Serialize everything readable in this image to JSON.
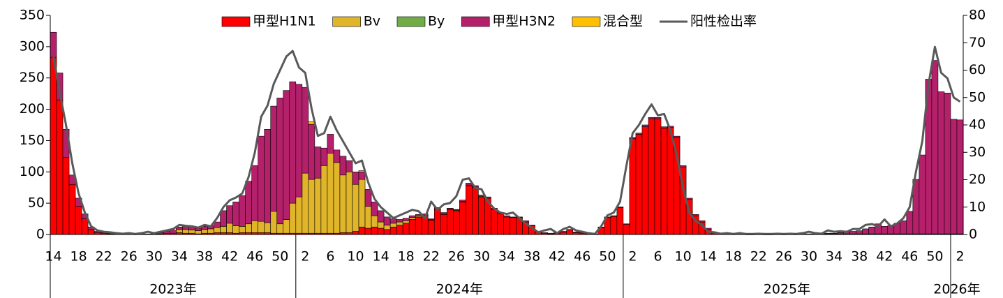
{
  "chart_data": {
    "type": "bar",
    "stacked": true,
    "legend": "top",
    "categories": [
      "14",
      null,
      null,
      null,
      "18",
      null,
      null,
      null,
      "22",
      null,
      null,
      null,
      "26",
      null,
      null,
      null,
      "30",
      null,
      null,
      null,
      "34",
      null,
      null,
      null,
      "38",
      null,
      null,
      null,
      "42",
      null,
      null,
      null,
      "46",
      null,
      null,
      null,
      "50",
      null,
      null,
      null,
      "2",
      null,
      null,
      null,
      "6",
      null,
      null,
      null,
      "10",
      null,
      null,
      null,
      "14",
      null,
      null,
      null,
      "18",
      null,
      null,
      null,
      "22",
      null,
      null,
      null,
      "26",
      null,
      null,
      null,
      "30",
      null,
      null,
      null,
      "34",
      null,
      null,
      null,
      "38",
      null,
      null,
      null,
      "42",
      null,
      null,
      null,
      "46",
      null,
      null,
      null,
      "50",
      null,
      null,
      null,
      "2",
      null,
      null,
      null,
      "6",
      null,
      null,
      null,
      "10",
      null,
      null,
      null,
      "14",
      null,
      null,
      null,
      "18",
      null,
      null,
      null,
      "22",
      null,
      null,
      null,
      "26",
      null,
      null,
      null,
      "30",
      null,
      null,
      null,
      "34",
      null,
      null,
      null,
      "38",
      null,
      null,
      null,
      "42",
      null,
      null,
      null,
      "46",
      null,
      null,
      null,
      "50",
      null,
      null,
      null,
      "2"
    ],
    "x_groups": [
      "2023年",
      "2024年",
      "2025年",
      "2026年"
    ],
    "ylim": [
      0,
      350
    ],
    "yticks": [
      0,
      50,
      100,
      150,
      200,
      250,
      300,
      350
    ],
    "y2lim": [
      0,
      80
    ],
    "y2ticks": [
      0,
      10,
      20,
      30,
      40,
      50,
      60,
      70,
      80
    ],
    "series": [
      {
        "name": "甲型H1N1",
        "color": "#ff0000",
        "values": [
          283,
          215,
          123,
          80,
          45,
          25,
          8,
          3,
          2,
          1,
          1,
          0,
          0,
          0,
          0,
          0,
          1,
          1,
          2,
          2,
          3,
          2,
          2,
          1,
          2,
          2,
          3,
          3,
          3,
          2,
          3,
          3,
          3,
          3,
          3,
          2,
          2,
          2,
          2,
          2,
          2,
          2,
          2,
          2,
          2,
          2,
          3,
          3,
          5,
          12,
          10,
          12,
          10,
          8,
          12,
          15,
          18,
          24,
          28,
          30,
          23,
          40,
          32,
          40,
          38,
          52,
          78,
          75,
          60,
          58,
          40,
          33,
          28,
          27,
          27,
          20,
          14,
          4,
          2,
          1,
          2,
          4,
          7,
          3,
          2,
          1,
          1,
          11,
          27,
          29,
          43,
          16,
          153,
          160,
          172,
          185,
          185,
          170,
          171,
          155,
          108,
          56,
          30,
          20,
          8,
          2,
          1,
          0,
          0,
          0,
          0,
          0,
          0,
          0,
          0,
          0,
          0,
          0,
          0,
          0,
          0,
          0,
          0,
          1,
          1,
          1,
          1,
          1,
          1,
          1,
          1,
          1,
          1,
          1,
          1,
          1,
          1,
          1,
          1,
          1,
          1,
          1,
          1,
          1,
          1
        ]
      },
      {
        "name": "Bv",
        "color": "#e0b52a",
        "values": [
          0,
          0,
          0,
          0,
          0,
          0,
          0,
          0,
          0,
          0,
          0,
          0,
          0,
          0,
          0,
          0,
          0,
          0,
          0,
          0,
          5,
          6,
          5,
          5,
          6,
          7,
          8,
          10,
          15,
          12,
          10,
          14,
          19,
          18,
          16,
          35,
          15,
          22,
          48,
          58,
          96,
          86,
          88,
          108,
          128,
          113,
          92,
          97,
          75,
          76,
          35,
          18,
          10,
          7,
          6,
          5,
          4,
          3,
          2,
          1,
          1,
          1,
          1,
          1,
          1,
          1,
          1,
          1,
          1,
          0,
          0,
          0,
          0,
          0,
          0,
          0,
          0,
          0,
          0,
          0,
          0,
          0,
          0,
          0,
          0,
          0,
          0,
          0,
          0,
          0,
          0,
          0,
          0,
          0,
          0,
          0,
          0,
          0,
          0,
          0,
          0,
          0,
          0,
          0,
          0,
          0,
          0,
          0,
          0,
          0,
          0,
          0,
          0,
          0,
          0,
          0,
          0,
          0,
          0,
          0,
          0,
          0,
          0,
          0,
          0,
          0,
          0,
          0,
          0,
          0,
          0,
          0,
          0,
          0,
          0,
          0,
          0,
          0,
          0,
          0,
          0,
          0,
          0,
          0,
          0
        ]
      },
      {
        "name": "By",
        "color": "#70ad47",
        "values": [
          0,
          0,
          0,
          0,
          0,
          0,
          0,
          0,
          0,
          0,
          0,
          0,
          0,
          0,
          0,
          0,
          0,
          0,
          0,
          0,
          0,
          0,
          0,
          0,
          0,
          0,
          0,
          0,
          0,
          0,
          0,
          0,
          0,
          0,
          0,
          0,
          0,
          0,
          0,
          0,
          0,
          0,
          0,
          0,
          0,
          0,
          0,
          0,
          0,
          0,
          0,
          0,
          0,
          0,
          0,
          0,
          0,
          0,
          0,
          0,
          0,
          0,
          0,
          0,
          0,
          0,
          0,
          0,
          0,
          0,
          0,
          0,
          0,
          0,
          0,
          0,
          0,
          0,
          0,
          0,
          0,
          0,
          0,
          0,
          0,
          0,
          0,
          0,
          0,
          0,
          0,
          0,
          0,
          0,
          0,
          0,
          0,
          0,
          0,
          0,
          0,
          0,
          0,
          0,
          0,
          0,
          0,
          0,
          0,
          0,
          0,
          0,
          0,
          0,
          0,
          0,
          0,
          0,
          0,
          0,
          0,
          0,
          0,
          0,
          0,
          0,
          0,
          0,
          0,
          0,
          0,
          0,
          0,
          0,
          0,
          0,
          0,
          0,
          0,
          0,
          0,
          0,
          0,
          0,
          0
        ]
      },
      {
        "name": "甲型H3N2",
        "color": "#b5206b",
        "values": [
          40,
          43,
          45,
          15,
          13,
          8,
          4,
          2,
          1,
          1,
          0,
          1,
          1,
          1,
          1,
          1,
          1,
          2,
          3,
          5,
          4,
          5,
          5,
          4,
          5,
          5,
          9,
          25,
          28,
          38,
          49,
          68,
          88,
          136,
          149,
          168,
          201,
          206,
          194,
          180,
          137,
          88,
          50,
          28,
          30,
          20,
          30,
          18,
          20,
          12,
          27,
          22,
          18,
          13,
          7,
          4,
          4,
          3,
          2,
          2,
          1,
          2,
          2,
          1,
          1,
          2,
          3,
          2,
          2,
          2,
          2,
          2,
          2,
          1,
          1,
          2,
          1,
          1,
          1,
          1,
          1,
          1,
          1,
          1,
          1,
          1,
          0,
          1,
          1,
          1,
          1,
          1,
          2,
          2,
          3,
          2,
          2,
          2,
          2,
          2,
          2,
          2,
          2,
          2,
          2,
          1,
          1,
          1,
          1,
          1,
          1,
          1,
          1,
          1,
          1,
          1,
          1,
          1,
          1,
          1,
          1,
          1,
          1,
          1,
          1,
          2,
          3,
          4,
          5,
          8,
          11,
          16,
          12,
          13,
          17,
          21,
          36,
          87,
          126,
          247,
          277,
          227,
          225,
          183,
          182
        ]
      },
      {
        "name": "混合型",
        "color": "#ffc000",
        "values": [
          0,
          0,
          0,
          0,
          0,
          0,
          0,
          0,
          0,
          0,
          0,
          0,
          0,
          0,
          0,
          0,
          0,
          0,
          0,
          0,
          0,
          0,
          0,
          0,
          0,
          0,
          0,
          0,
          0,
          0,
          0,
          0,
          0,
          0,
          0,
          0,
          0,
          0,
          0,
          0,
          0,
          4,
          0,
          0,
          0,
          0,
          0,
          0,
          0,
          2,
          0,
          0,
          0,
          0,
          0,
          0,
          0,
          0,
          0,
          0,
          0,
          0,
          0,
          0,
          0,
          0,
          0,
          0,
          0,
          0,
          0,
          0,
          0,
          0,
          0,
          0,
          0,
          0,
          0,
          0,
          0,
          0,
          0,
          0,
          0,
          0,
          0,
          0,
          0,
          0,
          0,
          0,
          0,
          0,
          0,
          0,
          0,
          0,
          0,
          0,
          0,
          0,
          0,
          0,
          0,
          0,
          0,
          0,
          0,
          0,
          0,
          0,
          0,
          0,
          0,
          0,
          0,
          0,
          0,
          0,
          0,
          0,
          0,
          0,
          0,
          0,
          0,
          0,
          0,
          0,
          0,
          0,
          0,
          0,
          0,
          0,
          0,
          0,
          0,
          0,
          0,
          0,
          0,
          0,
          0
        ]
      },
      {
        "name": "阳性检出率",
        "type": "line",
        "axis": "y2",
        "color": "#595959",
        "values": [
          65,
          52,
          40,
          26,
          15,
          8,
          3,
          1.5,
          1,
          0.8,
          0.5,
          0.3,
          0.5,
          0.2,
          0.5,
          1,
          0.5,
          1,
          1.5,
          2,
          3.5,
          3.2,
          3,
          2.5,
          3.5,
          3,
          6,
          10,
          12.5,
          13.5,
          15,
          21,
          30,
          43,
          47,
          55,
          60,
          65,
          67,
          61,
          59,
          46,
          36,
          37,
          43,
          38,
          34,
          30,
          26,
          27,
          19,
          13,
          10,
          8,
          6,
          7,
          8,
          9,
          8.5,
          6,
          12,
          9,
          11,
          11.5,
          14,
          20,
          20.5,
          17,
          16.5,
          12,
          9.5,
          8,
          7.5,
          8,
          6,
          4,
          2.5,
          0.8,
          1.5,
          2,
          0.5,
          2,
          2.8,
          1.5,
          1,
          0.5,
          0.2,
          3,
          7,
          8,
          12,
          25,
          37,
          40,
          44,
          47.5,
          43.5,
          44,
          38,
          29,
          17,
          8,
          5,
          3.5,
          1,
          0.8,
          0.3,
          0.5,
          0.2,
          0.5,
          0.2,
          0.2,
          0.3,
          0.2,
          0.2,
          0.3,
          0.2,
          0.3,
          0.2,
          0.5,
          1,
          0.5,
          0.3,
          1.5,
          1,
          1.2,
          1,
          2,
          2,
          3.5,
          3.8,
          3,
          5.5,
          3,
          4,
          6,
          10,
          23,
          34,
          55,
          68.5,
          59,
          57,
          50,
          48.5
        ]
      }
    ]
  }
}
